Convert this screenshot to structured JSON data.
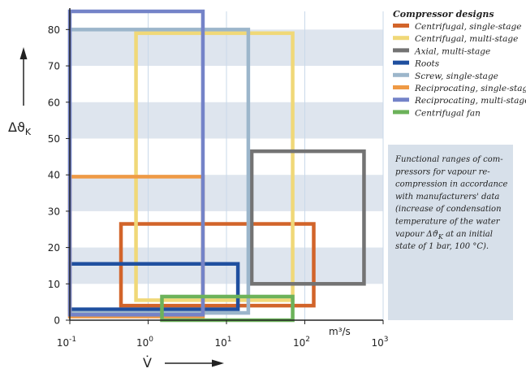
{
  "chart_data": {
    "type": "range-rectangles",
    "x_axis": {
      "symbol": "V̇",
      "unit": "m³/s",
      "scale": "log",
      "range": [
        0.1,
        1000
      ],
      "ticks": [
        {
          "value": 0.1,
          "base": "10",
          "exp": "-1"
        },
        {
          "value": 1,
          "base": "10",
          "exp": "0"
        },
        {
          "value": 10,
          "base": "10",
          "exp": "1"
        },
        {
          "value": 100,
          "base": "10",
          "exp": "2"
        },
        {
          "value": 1000,
          "base": "10",
          "exp": "3"
        }
      ]
    },
    "y_axis": {
      "symbol": "Δϑ",
      "subscript": "K",
      "scale": "linear",
      "range": [
        0,
        85
      ],
      "ticks": [
        "0",
        "10",
        "20",
        "30",
        "40",
        "50",
        "60",
        "70",
        "80"
      ]
    },
    "legend_title": "Compressor designs",
    "series": [
      {
        "name": "Centrifugal, single-stage",
        "color": "#d2642a",
        "x_range": [
          0.45,
          130
        ],
        "y_range": [
          4,
          26.5
        ]
      },
      {
        "name": "Centrifugal, multi-stage",
        "color": "#f0d878",
        "x_range": [
          0.7,
          70
        ],
        "y_range": [
          5.5,
          79
        ]
      },
      {
        "name": "Axial, multi-stage",
        "color": "#737373",
        "x_range": [
          21,
          570
        ],
        "y_range": [
          10,
          46.5
        ]
      },
      {
        "name": "Roots",
        "color": "#1f4f9f",
        "x_range": [
          0.1,
          14
        ],
        "y_range": [
          3,
          15.5
        ]
      },
      {
        "name": "Screw, single-stage",
        "color": "#9cb6cb",
        "x_range": [
          0.1,
          19
        ],
        "y_range": [
          2,
          80
        ]
      },
      {
        "name": "Reciprocating, single-stage",
        "color": "#ef9a45",
        "x_range": [
          0.1,
          5
        ],
        "y_range": [
          1,
          39.5
        ]
      },
      {
        "name": "Reciprocating, multi-stage",
        "color": "#7483c8",
        "x_range": [
          0.1,
          5
        ],
        "y_range": [
          1.5,
          85
        ]
      },
      {
        "name": "Centrifugal fan",
        "color": "#6cb25a",
        "x_range": [
          1.5,
          70
        ],
        "y_range": [
          0,
          6.5
        ]
      }
    ]
  },
  "note": {
    "lines": [
      "Functional ranges of com-",
      "pressors for vapour re-",
      "compression in accordance",
      "with manufacturers' data",
      "(increase of condensation",
      "temperature of the water",
      "vapour Δϑ",
      "at an initial",
      "state of 1 bar, 100 °C)."
    ],
    "subscript": "K"
  },
  "colors": {
    "band": "#dee5ee",
    "note_bg": "#d7e0ea",
    "grid": "#c9d9ea",
    "axis": "#222222"
  }
}
